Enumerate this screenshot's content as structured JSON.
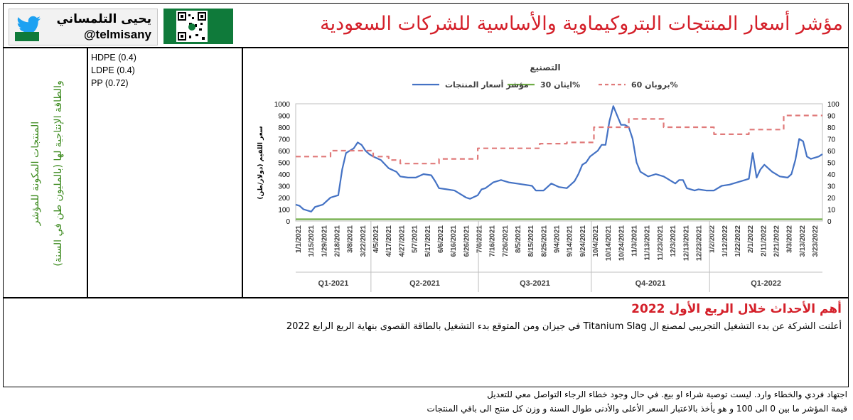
{
  "header": {
    "title": "مؤشر أسعار المنتجات البتروكيماوية والأساسية للشركات السعودية",
    "author_name": "يحيى التلمساني",
    "author_handle": "@telmisany"
  },
  "left_panel": {
    "label_line1": "المنتجات المكونة للمؤشر",
    "label_line2": "والطاقة الإنتاجية لها (بالمليون طن في السنة)"
  },
  "materials": [
    "HDPE (0.4)",
    "LDPE (0.4)",
    "PP (0.72)"
  ],
  "events": {
    "title": "أهم الأحداث خلال الربع الأول 2022",
    "text": "أعلنت الشركة عن بدء التشغيل التجريبي لمصنع ال Titanium Slag في جيزان ومن المتوقع بدء التشغيل بالطاقة القصوى بنهاية الربع الرابع 2022"
  },
  "footer": {
    "line1": "اجتهاد فردي والخطاء وارد. ليست توصية شراء او بيع. في حال وجود خطاء الرجاء التواصل معي للتعديل",
    "line2": "قيمة المؤشر ما بين 0 الى 100 و هو يأخذ بالاعتبار السعر الأعلى والأدنى طوال السنة و وزن كل منتج الى باقي المنتجات"
  },
  "colors": {
    "index_line": "#4472c4",
    "ethane_line": "#70ad47",
    "propane_line": "#e07a7a",
    "title_red": "#d4202a",
    "label_green": "#3c8a1e"
  },
  "chart_data": {
    "type": "line",
    "title": "التصنيع",
    "ylabel_left": "سعر اللقيم (دولار/طن)",
    "ylim_left": [
      0,
      1000
    ],
    "ylim_right": [
      0,
      100
    ],
    "yticks_left": [
      "0",
      "100",
      "200",
      "300",
      "400",
      "500",
      "600",
      "700",
      "800",
      "900",
      "1000"
    ],
    "yticks_right": [
      "0",
      "10",
      "20",
      "30",
      "40",
      "50",
      "60",
      "70",
      "80",
      "90",
      "100"
    ],
    "x_tick_labels": [
      "1/1/2021",
      "1/15/2021",
      "1/29/2021",
      "2/18/2021",
      "3/8/2021",
      "3/22/2021",
      "4/5/2021",
      "4/17/2021",
      "4/27/2021",
      "5/7/2021",
      "5/17/2021",
      "6/6/2021",
      "6/16/2021",
      "6/26/2021",
      "7/6/2021",
      "7/16/2021",
      "7/26/2021",
      "8/5/2021",
      "8/15/2021",
      "8/25/2021",
      "9/4/2021",
      "9/14/2021",
      "9/24/2021",
      "10/4/2021",
      "10/14/2021",
      "10/24/2021",
      "11/3/2021",
      "11/13/2021",
      "11/23/2021",
      "12/3/2021",
      "12/13/2021",
      "12/23/2021",
      "1/2/2022",
      "1/12/2022",
      "1/22/2022",
      "2/1/2022",
      "2/11/2022",
      "2/21/2022",
      "3/3/2022",
      "3/13/2022",
      "3/23/2022"
    ],
    "quarters": [
      "Q1-2021",
      "Q2-2021",
      "Q3-2021",
      "Q4-2021",
      "Q1-2022"
    ],
    "legend": [
      "بروبان 60%",
      "ايثان 30%",
      "مؤشر أسعار المنتجات"
    ],
    "legend_position": "top",
    "series": [
      {
        "name": "مؤشر أسعار المنتجات",
        "axis": "right",
        "style": "solid",
        "points": [
          [
            0,
            14
          ],
          [
            1,
            13
          ],
          [
            2,
            10
          ],
          [
            4,
            8
          ],
          [
            5,
            12
          ],
          [
            7,
            14
          ],
          [
            9,
            20
          ],
          [
            11,
            22
          ],
          [
            12,
            44
          ],
          [
            13,
            58
          ],
          [
            15,
            62
          ],
          [
            16,
            67
          ],
          [
            17,
            65
          ],
          [
            18,
            60
          ],
          [
            19,
            57
          ],
          [
            20,
            55
          ],
          [
            22,
            52
          ],
          [
            24,
            45
          ],
          [
            26,
            42
          ],
          [
            27,
            38
          ],
          [
            29,
            37
          ],
          [
            31,
            37
          ],
          [
            33,
            40
          ],
          [
            35,
            39
          ],
          [
            36,
            34
          ],
          [
            37,
            28
          ],
          [
            39,
            27
          ],
          [
            41,
            26
          ],
          [
            43,
            22
          ],
          [
            44,
            20
          ],
          [
            45,
            19
          ],
          [
            47,
            22
          ],
          [
            48,
            27
          ],
          [
            49,
            28
          ],
          [
            51,
            33
          ],
          [
            53,
            35
          ],
          [
            55,
            33
          ],
          [
            57,
            32
          ],
          [
            59,
            31
          ],
          [
            61,
            30
          ],
          [
            62,
            26
          ],
          [
            64,
            26
          ],
          [
            66,
            32
          ],
          [
            68,
            29
          ],
          [
            70,
            28
          ],
          [
            72,
            34
          ],
          [
            73,
            40
          ],
          [
            74,
            48
          ],
          [
            75,
            50
          ],
          [
            76,
            55
          ],
          [
            78,
            60
          ],
          [
            79,
            65
          ],
          [
            80,
            65
          ],
          [
            81,
            85
          ],
          [
            82,
            98
          ],
          [
            83,
            90
          ],
          [
            84,
            82
          ],
          [
            85,
            82
          ],
          [
            86,
            80
          ],
          [
            87,
            70
          ],
          [
            88,
            50
          ],
          [
            89,
            42
          ],
          [
            91,
            38
          ],
          [
            93,
            40
          ],
          [
            95,
            38
          ],
          [
            96,
            36
          ],
          [
            98,
            32
          ],
          [
            99,
            35
          ],
          [
            100,
            35
          ],
          [
            101,
            28
          ],
          [
            103,
            26
          ],
          [
            104,
            27
          ],
          [
            106,
            26
          ],
          [
            108,
            26
          ],
          [
            110,
            30
          ],
          [
            112,
            31
          ],
          [
            114,
            33
          ],
          [
            116,
            35
          ],
          [
            117,
            36
          ],
          [
            118,
            58
          ],
          [
            119,
            37
          ],
          [
            120,
            44
          ],
          [
            121,
            48
          ],
          [
            123,
            42
          ],
          [
            125,
            38
          ],
          [
            127,
            37
          ],
          [
            128,
            40
          ],
          [
            129,
            52
          ],
          [
            130,
            70
          ],
          [
            131,
            68
          ],
          [
            132,
            55
          ],
          [
            133,
            53
          ],
          [
            135,
            55
          ],
          [
            136,
            57
          ]
        ]
      },
      {
        "name": "ايثان 30%",
        "axis": "right",
        "style": "solid",
        "points": [
          [
            0,
            1.5
          ],
          [
            136,
            1.5
          ]
        ]
      },
      {
        "name": "بروبان 60%",
        "axis": "right",
        "style": "dashed",
        "points": [
          [
            0,
            55
          ],
          [
            9,
            55
          ],
          [
            9,
            60
          ],
          [
            20,
            60
          ],
          [
            20,
            55
          ],
          [
            24,
            55
          ],
          [
            24,
            52
          ],
          [
            27,
            52
          ],
          [
            27,
            49
          ],
          [
            37,
            49
          ],
          [
            37,
            53
          ],
          [
            47,
            53
          ],
          [
            47,
            62
          ],
          [
            56,
            62
          ],
          [
            56,
            62
          ],
          [
            63,
            62
          ],
          [
            63,
            66
          ],
          [
            70,
            66
          ],
          [
            70,
            67
          ],
          [
            77,
            67
          ],
          [
            77,
            80
          ],
          [
            86,
            80
          ],
          [
            86,
            87
          ],
          [
            95,
            87
          ],
          [
            95,
            80
          ],
          [
            102,
            80
          ],
          [
            102,
            80
          ],
          [
            108,
            80
          ],
          [
            108,
            74
          ],
          [
            117,
            74
          ],
          [
            117,
            78
          ],
          [
            126,
            78
          ],
          [
            126,
            90
          ],
          [
            136,
            90
          ]
        ]
      }
    ]
  }
}
